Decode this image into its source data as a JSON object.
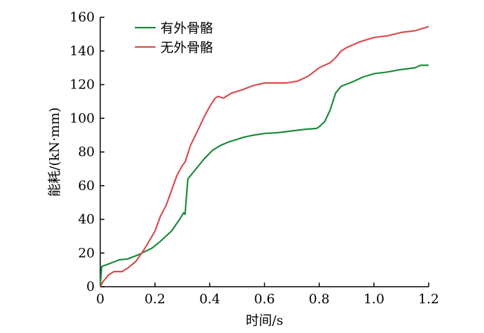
{
  "chart_data": {
    "type": "line",
    "title": "",
    "xlabel": "时间/s",
    "ylabel": "能耗/(kN·mm)",
    "xlim": [
      0,
      1.2
    ],
    "ylim": [
      0,
      160
    ],
    "xticks": [
      0,
      0.2,
      0.4,
      0.6,
      0.8,
      1.0,
      1.2
    ],
    "xtick_labels": [
      "0",
      "0.2",
      "0.4",
      "0.6",
      "0.8",
      "1.0",
      "1.2"
    ],
    "yticks": [
      0,
      20,
      40,
      60,
      80,
      100,
      120,
      140,
      160
    ],
    "ytick_labels": [
      "0",
      "20",
      "40",
      "60",
      "80",
      "100",
      "120",
      "140",
      "160"
    ],
    "grid": false,
    "legend_position": "top-left",
    "series": [
      {
        "name": "有外骨骼",
        "color": "#1a8a3a",
        "x": [
          0.0,
          0.005,
          0.03,
          0.07,
          0.1,
          0.14,
          0.19,
          0.22,
          0.26,
          0.29,
          0.305,
          0.31,
          0.32,
          0.35,
          0.38,
          0.41,
          0.44,
          0.47,
          0.5,
          0.53,
          0.56,
          0.6,
          0.65,
          0.7,
          0.75,
          0.79,
          0.8,
          0.82,
          0.84,
          0.86,
          0.88,
          0.92,
          0.96,
          1.0,
          1.05,
          1.1,
          1.15,
          1.17,
          1.2
        ],
        "y": [
          0,
          12,
          13.5,
          16,
          16.5,
          19,
          23,
          27,
          33,
          40,
          44,
          43,
          64,
          70,
          76,
          81,
          84,
          86,
          87.5,
          89,
          90,
          91,
          91.5,
          92.5,
          93.5,
          94,
          95,
          98,
          105,
          115,
          119,
          121.5,
          124.5,
          126.5,
          127.5,
          129,
          130,
          131.5,
          131.5
        ]
      },
      {
        "name": "无外骨骼",
        "color": "#d94c4c",
        "x": [
          0.0,
          0.01,
          0.03,
          0.05,
          0.08,
          0.1,
          0.13,
          0.16,
          0.2,
          0.22,
          0.24,
          0.26,
          0.28,
          0.3,
          0.31,
          0.33,
          0.36,
          0.38,
          0.4,
          0.42,
          0.43,
          0.45,
          0.48,
          0.5,
          0.52,
          0.56,
          0.6,
          0.64,
          0.68,
          0.72,
          0.76,
          0.8,
          0.84,
          0.86,
          0.88,
          0.9,
          0.95,
          1.0,
          1.05,
          1.1,
          1.15,
          1.2
        ],
        "y": [
          0,
          3,
          7,
          9,
          9,
          11,
          15,
          22,
          33,
          42,
          48,
          57,
          66,
          72,
          74,
          84,
          94,
          101,
          107,
          112,
          113,
          112,
          115,
          116,
          117,
          119.5,
          121,
          121,
          121,
          122,
          125,
          130,
          133,
          136,
          140,
          142,
          145.5,
          148,
          149,
          151,
          152,
          154.5
        ]
      }
    ]
  }
}
